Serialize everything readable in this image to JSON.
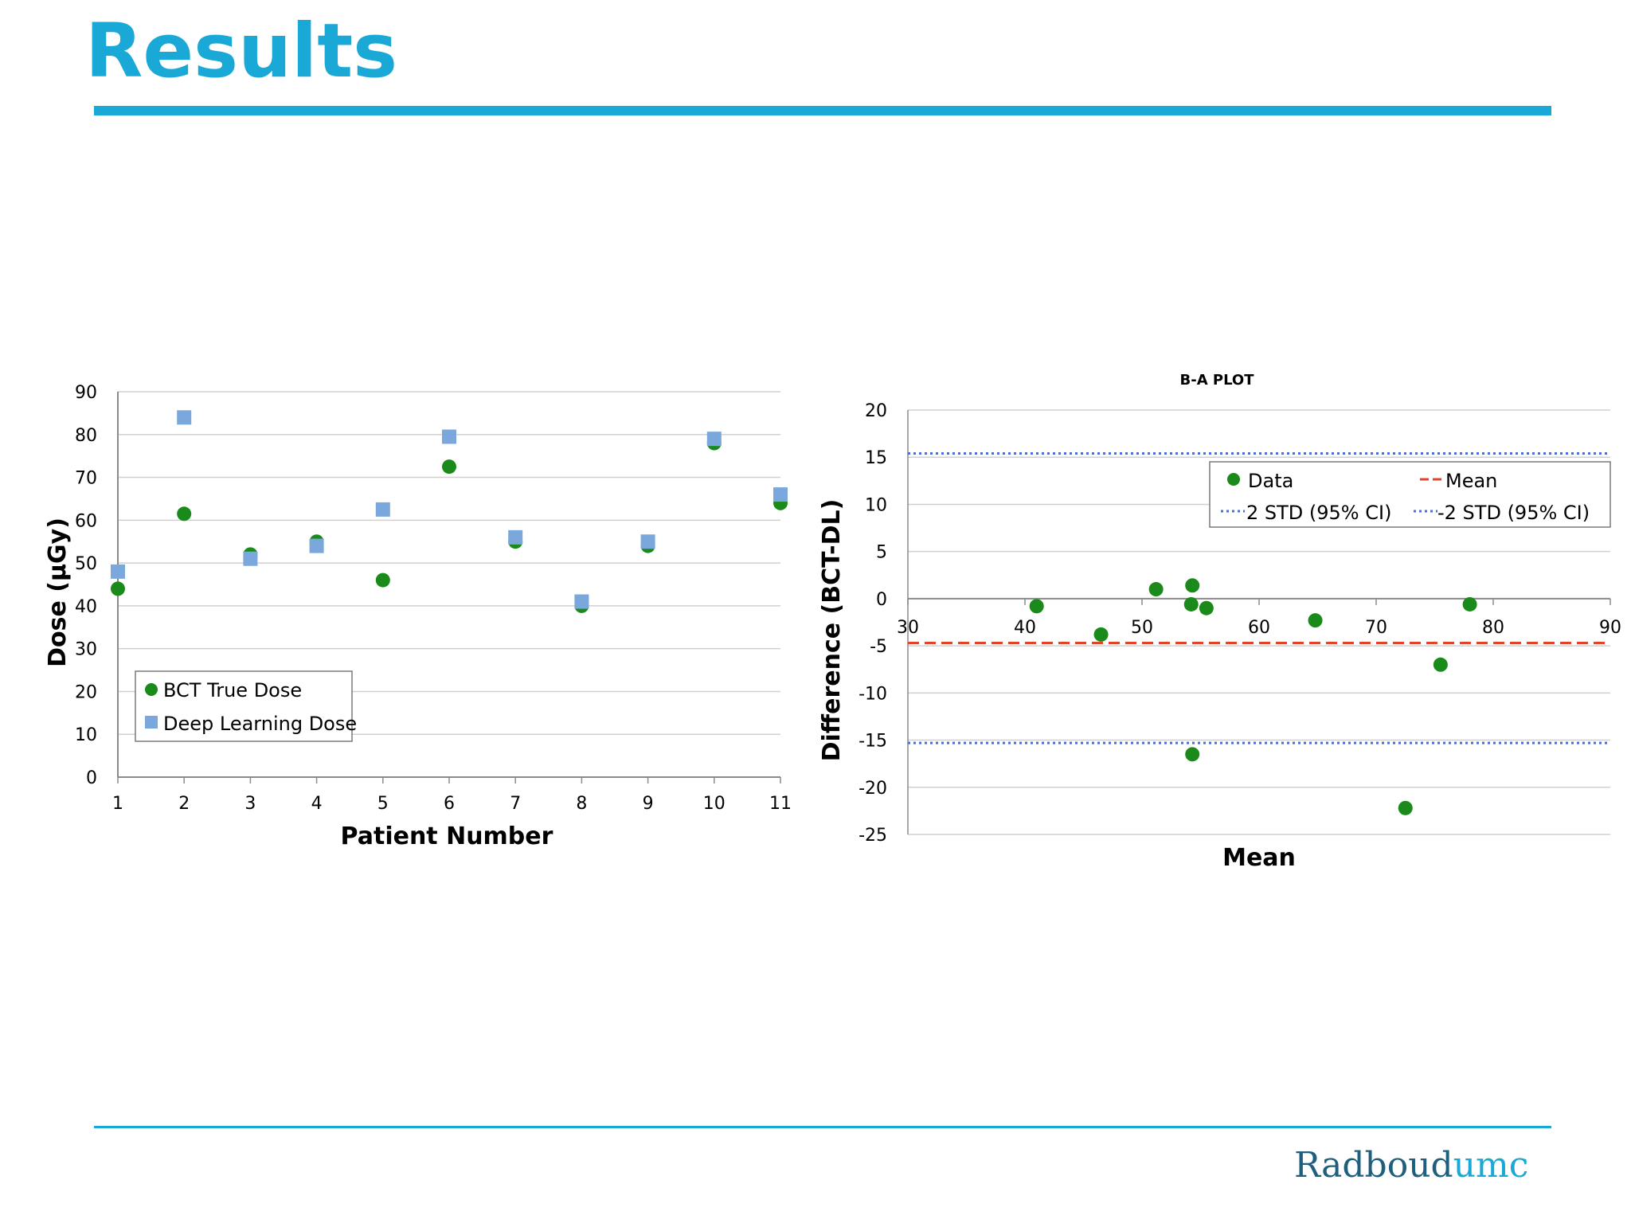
{
  "slide": {
    "title": "Results",
    "logo_part1": "Radboud",
    "logo_part2": "umc",
    "colors": {
      "accent": "#1aa9d6",
      "logo_dark": "#1f5f7e"
    }
  },
  "chart_data": [
    {
      "type": "scatter",
      "title": "",
      "xlabel": "Patient Number",
      "ylabel": "Dose (µGy)",
      "x": [
        1,
        2,
        3,
        4,
        5,
        6,
        7,
        8,
        9,
        10,
        11
      ],
      "xticks": [
        "1",
        "2",
        "3",
        "4",
        "5",
        "6",
        "7",
        "8",
        "9",
        "10",
        "11"
      ],
      "yticks": [
        "0",
        "10",
        "20",
        "30",
        "40",
        "50",
        "60",
        "70",
        "80",
        "90"
      ],
      "xlim": [
        1,
        11
      ],
      "ylim": [
        0,
        90
      ],
      "grid": true,
      "legend_position": "bottom-left",
      "series": [
        {
          "name": "BCT True Dose",
          "marker": "circle",
          "color": "#1a8a1a",
          "values": [
            44,
            61.5,
            52,
            55,
            46,
            72.5,
            55,
            40,
            54,
            78,
            64
          ]
        },
        {
          "name": "Deep Learning Dose",
          "marker": "square",
          "color": "#7aa7dc",
          "values": [
            48,
            84,
            51,
            54,
            62.5,
            79.5,
            56,
            41,
            55,
            79,
            66
          ]
        }
      ]
    },
    {
      "type": "scatter",
      "title": "B-A PLOT",
      "xlabel": "Mean",
      "ylabel": "Difference (BCT-DL)",
      "xticks": [
        "30",
        "40",
        "50",
        "60",
        "70",
        "80",
        "90"
      ],
      "yticks": [
        "20",
        "15",
        "10",
        "5",
        "0",
        "-5",
        "-10",
        "-15",
        "-20",
        "-25"
      ],
      "xlim": [
        30,
        90
      ],
      "ylim": [
        -25,
        20
      ],
      "grid": true,
      "legend_position": "top-right",
      "series": [
        {
          "name": "Data",
          "marker": "circle",
          "color": "#1a8a1a",
          "x": [
            41,
            46.5,
            51.2,
            54.3,
            54.2,
            55.5,
            64.8,
            75.5,
            78,
            54.3,
            72.5
          ],
          "y": [
            -0.8,
            -3.8,
            1,
            1.4,
            -0.6,
            -1,
            -2.3,
            -7,
            -0.6,
            -16.5,
            -22.2
          ]
        }
      ],
      "lines": [
        {
          "name": "Mean",
          "y": -4.7,
          "style": "dashed",
          "color": "#e0442a"
        },
        {
          "name": "2 STD (95% CI)",
          "y": 15.4,
          "style": "dotted",
          "color": "#4a6fd0"
        },
        {
          "name": "-2 STD (95% CI)",
          "y": -15.3,
          "style": "dotted",
          "color": "#4a6fd0"
        }
      ]
    }
  ]
}
